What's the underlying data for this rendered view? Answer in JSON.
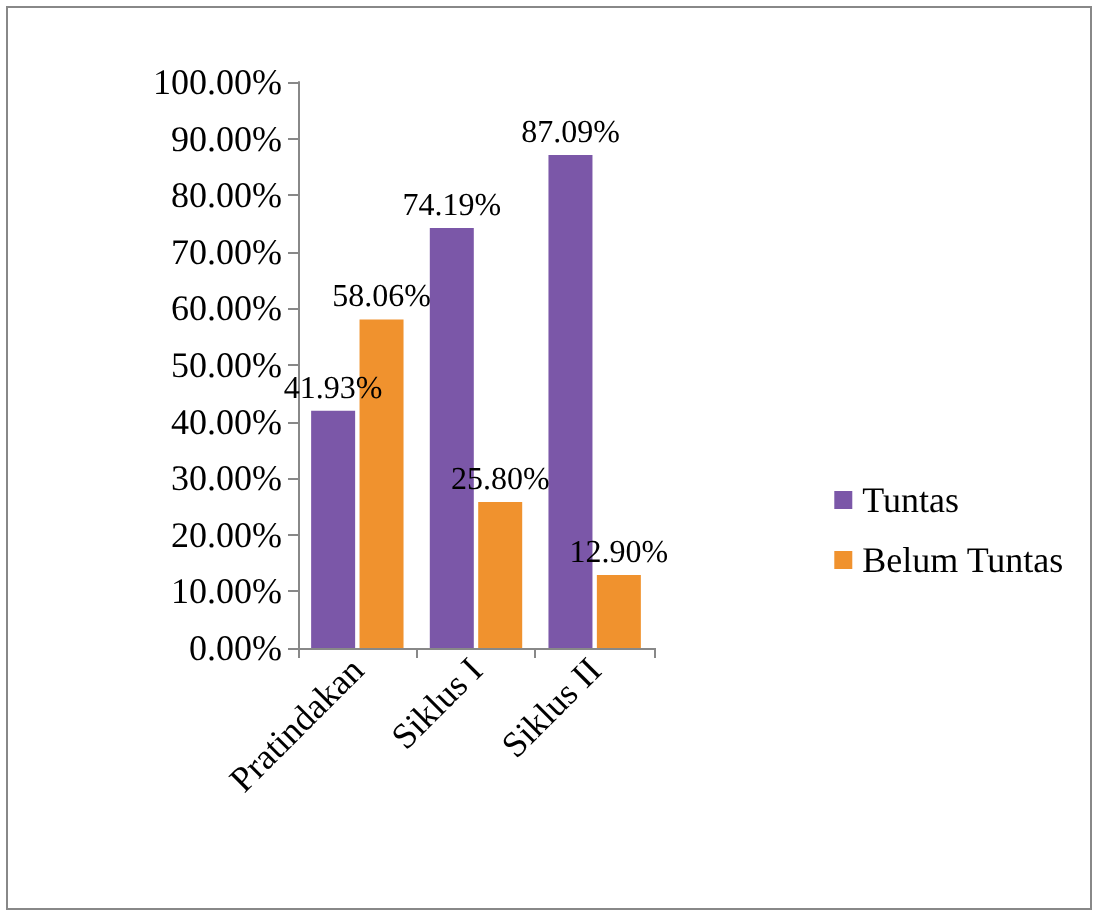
{
  "chart_data": {
    "type": "bar",
    "categories": [
      "Pratindakan",
      "Siklus I",
      "Siklus II"
    ],
    "series": [
      {
        "name": "Tuntas",
        "color": "#7b57a8",
        "values": [
          41.93,
          74.19,
          87.09
        ],
        "value_labels": [
          "41.93%",
          "74.19%",
          "87.09%"
        ]
      },
      {
        "name": "Belum Tuntas",
        "color": "#f0922e",
        "values": [
          58.06,
          25.8,
          12.9
        ],
        "value_labels": [
          "58.06%",
          "25.80%",
          "12.90%"
        ]
      }
    ],
    "ylim": [
      0,
      100
    ],
    "yticks": [
      {
        "value": 0,
        "label": "0.00%"
      },
      {
        "value": 10,
        "label": "10.00%"
      },
      {
        "value": 20,
        "label": "20.00%"
      },
      {
        "value": 30,
        "label": "30.00%"
      },
      {
        "value": 40,
        "label": "40.00%"
      },
      {
        "value": 50,
        "label": "50.00%"
      },
      {
        "value": 60,
        "label": "60.00%"
      },
      {
        "value": 70,
        "label": "70.00%"
      },
      {
        "value": 80,
        "label": "80.00%"
      },
      {
        "value": 90,
        "label": "90.00%"
      },
      {
        "value": 100,
        "label": "100.00%"
      }
    ],
    "grid": false,
    "legend": "right"
  }
}
